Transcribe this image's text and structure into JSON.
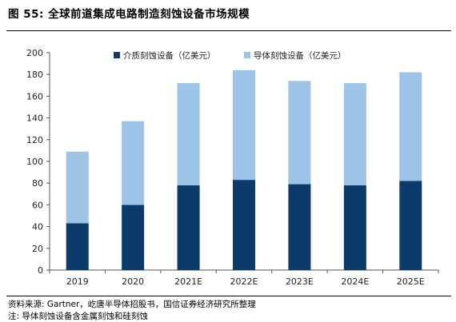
{
  "header": {
    "title": "图 55: 全球前道集成电路制造刻蚀设备市场规模"
  },
  "footer": {
    "source": "资料来源: Gartner，屹唐半导体招股书，国信证券经济研究所整理",
    "note": "注: 导体刻蚀设备含金属刻蚀和硅刻蚀"
  },
  "colors": {
    "dielectric": "#0b3a6b",
    "conductor": "#9dc3e6"
  },
  "chart_data": {
    "type": "bar",
    "stacked": true,
    "categories": [
      "2019",
      "2020",
      "2021E",
      "2022E",
      "2023E",
      "2024E",
      "2025E"
    ],
    "series": [
      {
        "name": "介质刻蚀设备（亿美元）",
        "values": [
          43,
          60,
          78,
          83,
          79,
          78,
          82
        ]
      },
      {
        "name": "导体刻蚀设备（亿美元）",
        "values": [
          66,
          77,
          94,
          101,
          95,
          94,
          100
        ]
      }
    ],
    "yticks": [
      "0",
      "20",
      "40",
      "60",
      "80",
      "100",
      "120",
      "140",
      "160",
      "180",
      "200"
    ],
    "ylim": [
      0,
      200
    ],
    "legend_position": "top-center",
    "grid": false
  }
}
